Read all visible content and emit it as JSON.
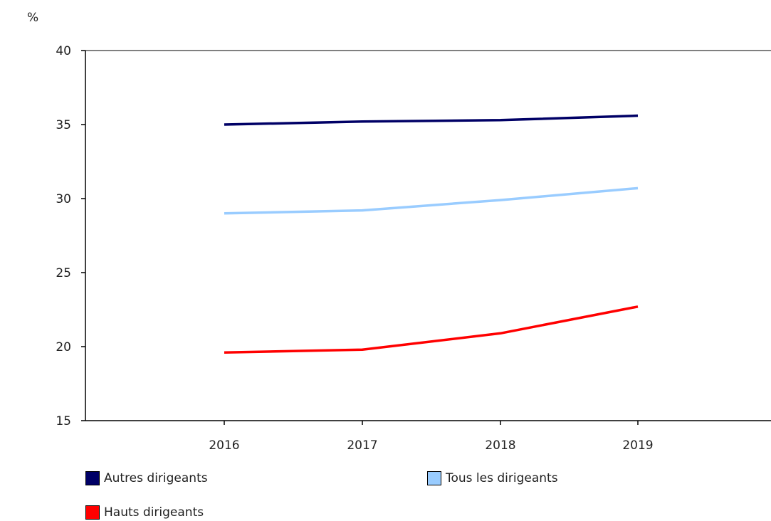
{
  "chart_data": {
    "type": "line",
    "unit_label": "%",
    "title": "",
    "xlabel": "",
    "ylabel": "%",
    "x": [
      "2016",
      "2017",
      "2018",
      "2019"
    ],
    "ylim": [
      15,
      40
    ],
    "yticks": [
      15,
      20,
      25,
      30,
      35,
      40
    ],
    "grid": false,
    "legend_position": "bottom",
    "series": [
      {
        "name": "Autres dirigeants",
        "color": "#000066",
        "values": [
          35.0,
          35.2,
          35.3,
          35.6
        ]
      },
      {
        "name": "Tous les dirigeants",
        "color": "#99CCFF",
        "values": [
          29.0,
          29.2,
          29.9,
          30.7
        ]
      },
      {
        "name": "Hauts dirigeants",
        "color": "#FF0000",
        "values": [
          19.6,
          19.8,
          20.9,
          22.7
        ]
      }
    ]
  }
}
